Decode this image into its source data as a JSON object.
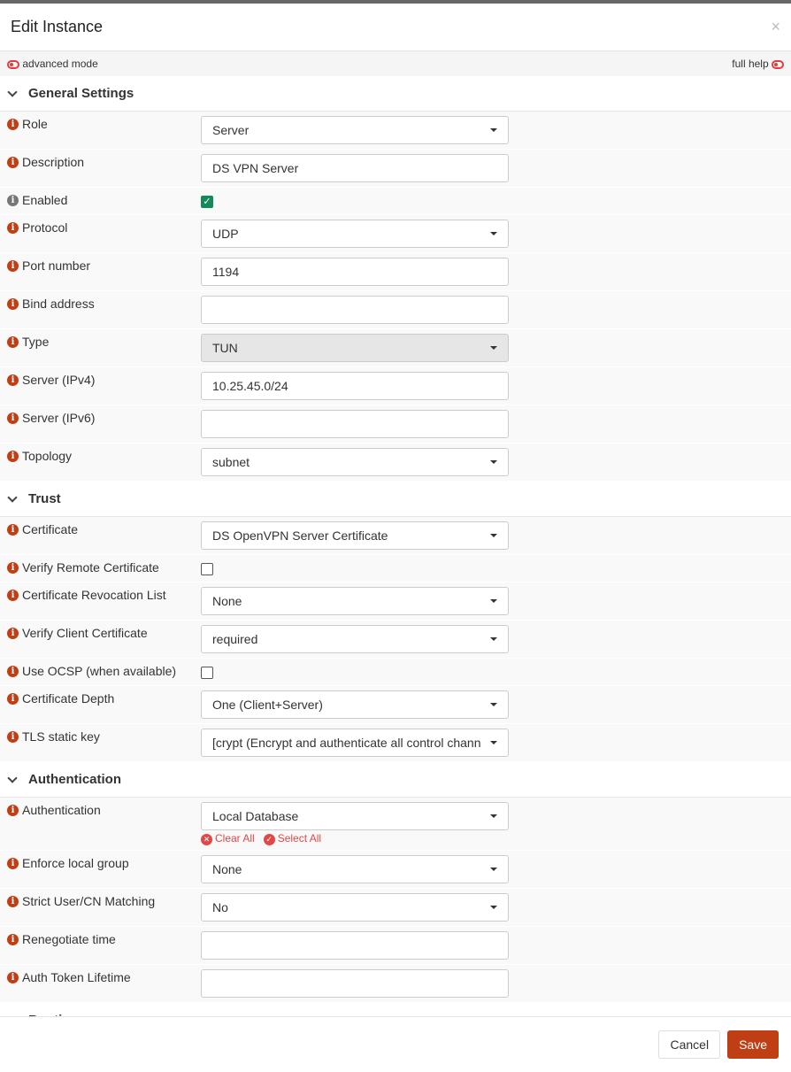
{
  "dialog": {
    "title": "Edit Instance",
    "close": "×"
  },
  "toolbar": {
    "advanced": "advanced mode",
    "full_help": "full help"
  },
  "sections": [
    {
      "title": "General Settings",
      "rows": [
        {
          "label": "Role",
          "type": "select",
          "value": "Server"
        },
        {
          "label": "Description",
          "type": "input",
          "value": "DS VPN Server"
        },
        {
          "label": "Enabled",
          "type": "checkbox",
          "checked": true,
          "info": "gray"
        },
        {
          "label": "Protocol",
          "type": "select",
          "value": "UDP"
        },
        {
          "label": "Port number",
          "type": "input",
          "value": "1194"
        },
        {
          "label": "Bind address",
          "type": "input",
          "value": ""
        },
        {
          "label": "Type",
          "type": "select",
          "value": "TUN",
          "disabled": true
        },
        {
          "label": "Server (IPv4)",
          "type": "input",
          "value": "10.25.45.0/24"
        },
        {
          "label": "Server (IPv6)",
          "type": "input",
          "value": ""
        },
        {
          "label": "Topology",
          "type": "select",
          "value": "subnet"
        }
      ]
    },
    {
      "title": "Trust",
      "rows": [
        {
          "label": "Certificate",
          "type": "select",
          "value": "DS OpenVPN Server Certificate"
        },
        {
          "label": "Verify Remote Certificate",
          "type": "checkbox",
          "checked": false
        },
        {
          "label": "Certificate Revocation List",
          "type": "select",
          "value": "None"
        },
        {
          "label": "Verify Client Certificate",
          "type": "select",
          "value": "required"
        },
        {
          "label": "Use OCSP (when available)",
          "type": "checkbox",
          "checked": false
        },
        {
          "label": "Certificate Depth",
          "type": "select",
          "value": "One (Client+Server)"
        },
        {
          "label": "TLS static key",
          "type": "select",
          "value": "[crypt (Encrypt and authenticate all control chann"
        }
      ]
    },
    {
      "title": "Authentication",
      "rows": [
        {
          "label": "Authentication",
          "type": "select",
          "value": "Local Database",
          "links": [
            "Clear All",
            "Select All"
          ]
        },
        {
          "label": "Enforce local group",
          "type": "select",
          "value": "None"
        },
        {
          "label": "Strict User/CN Matching",
          "type": "select",
          "value": "No"
        },
        {
          "label": "Renegotiate time",
          "type": "input",
          "value": ""
        },
        {
          "label": "Auth Token Lifetime",
          "type": "input",
          "value": ""
        }
      ]
    },
    {
      "title": "Routing",
      "rows": []
    }
  ],
  "footer": {
    "cancel": "Cancel",
    "save": "Save"
  },
  "colors": {
    "accent": "#c03e14",
    "toggle": "#e03e3e",
    "checkbox": "#138a5a"
  }
}
